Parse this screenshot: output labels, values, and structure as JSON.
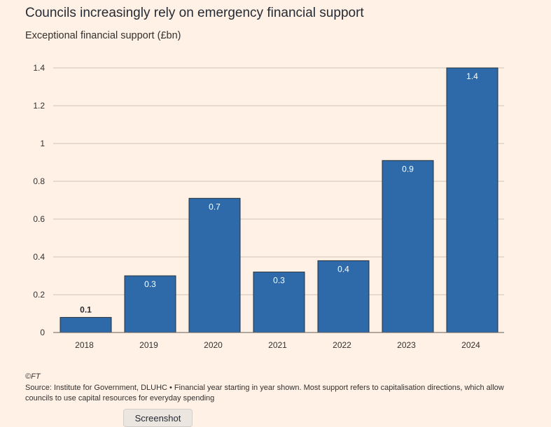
{
  "header": {
    "title": "Councils increasingly rely on emergency financial support",
    "subtitle": "Exceptional financial support (£bn)"
  },
  "footer": {
    "copyright": "©FT",
    "source": "Source: Institute for Government, DLUHC • Financial year starting in year shown. Most support refers to capitalisation directions, which allow councils to use capital resources for everyday spending"
  },
  "screenshot_button": {
    "label": "Screenshot"
  },
  "chart_data": {
    "type": "bar",
    "categories": [
      "2018",
      "2019",
      "2020",
      "2021",
      "2022",
      "2023",
      "2024"
    ],
    "values": [
      0.08,
      0.3,
      0.71,
      0.32,
      0.38,
      0.91,
      1.4
    ],
    "data_labels": [
      "0.1",
      "0.3",
      "0.7",
      "0.3",
      "0.4",
      "0.9",
      "1.4"
    ],
    "ylim": [
      0,
      1.4
    ],
    "yticks": [
      0,
      0.2,
      0.4,
      0.6,
      0.8,
      1,
      1.2,
      1.4
    ],
    "ytick_labels": [
      "0",
      "0.2",
      "0.4",
      "0.6",
      "0.8",
      "1",
      "1.2",
      "1.4"
    ],
    "grid": true,
    "colors": {
      "bar": "#2e6aa9",
      "bar_edge": "#27313b",
      "grid": "#ccc1b7",
      "label_inside": "#ffffff",
      "label_outside": "#262a33"
    }
  }
}
